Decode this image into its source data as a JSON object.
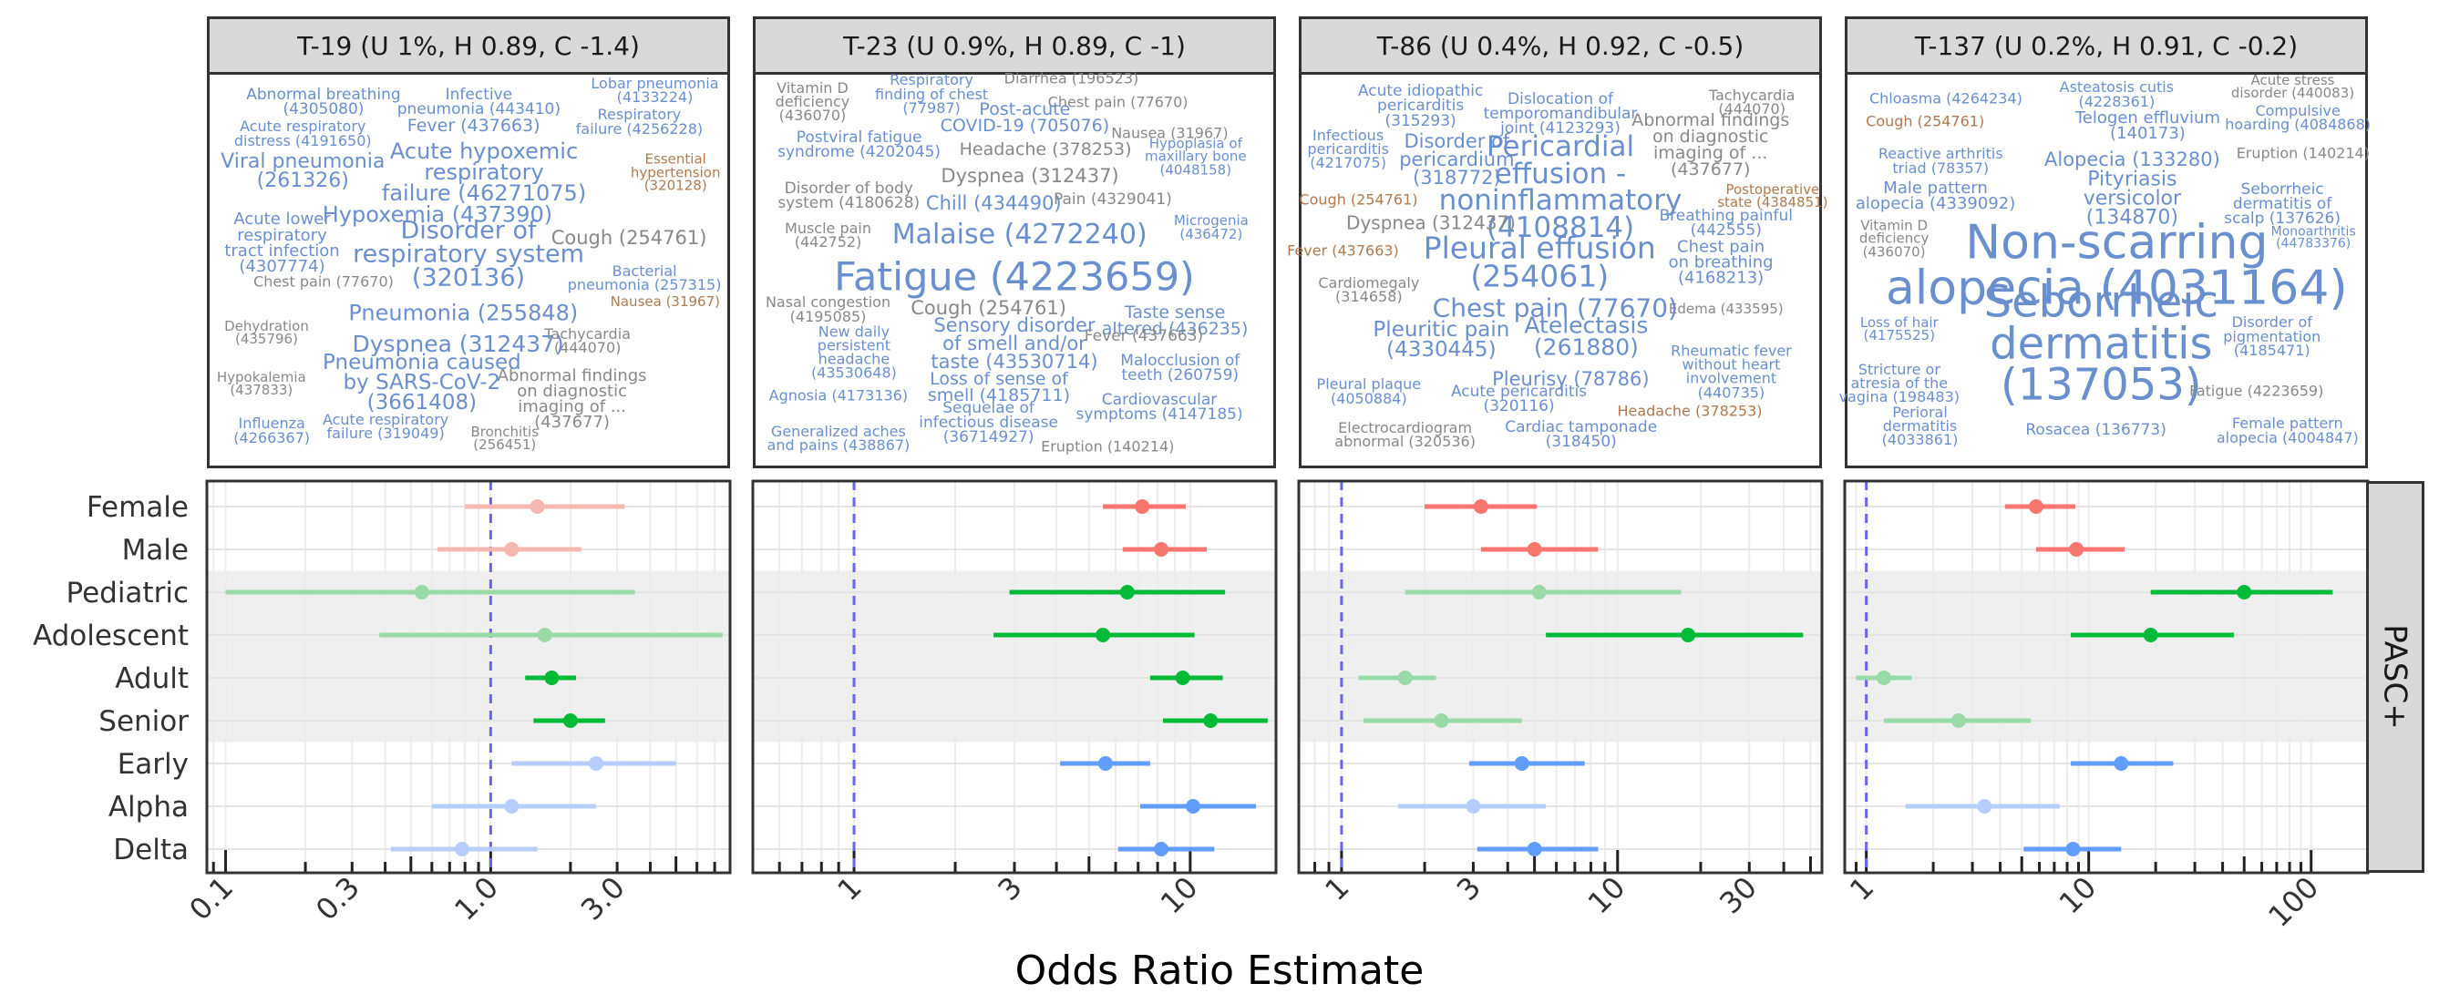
{
  "xaxis_title": "Odds Ratio Estimate",
  "side_strip_label": "PASC+",
  "colors": {
    "sex": "#f8766d",
    "age": "#00ba38",
    "variant": "#619cff",
    "reference_line": "#6666ee",
    "wordcloud_blue": "#6a8fcf",
    "wordcloud_gray": "#888888",
    "wordcloud_brown": "#b07a50"
  },
  "panels": [
    {
      "title": "T-19 (U 1%, H 0.89, C -1.4)",
      "words": [
        {
          "t": "Abnormal breathing\n(4305080)",
          "c": "b"
        },
        {
          "t": "Infective\npneumonia (443410)",
          "c": "b"
        },
        {
          "t": "Lobar pneumonia\n(4133224)",
          "c": "b"
        },
        {
          "t": "Acute respiratory\ndistress (4191650)",
          "c": "b"
        },
        {
          "t": "Fever (437663)",
          "c": "b"
        },
        {
          "t": "Respiratory\nfailure (4256228)",
          "c": "b"
        },
        {
          "t": "Viral pneumonia\n(261326)",
          "c": "b"
        },
        {
          "t": "Acute hypoxemic\nrespiratory\nfailure (46271075)",
          "c": "b"
        },
        {
          "t": "Essential\nhypertension\n(320128)",
          "c": "o"
        },
        {
          "t": "Acute lower\nrespiratory\ntract infection\n(4307774)",
          "c": "b"
        },
        {
          "t": "Hypoxemia (437390)",
          "c": "b"
        },
        {
          "t": "Disorder of\nrespiratory system\n(320136)",
          "c": "b"
        },
        {
          "t": "Cough (254761)",
          "c": "g"
        },
        {
          "t": "Chest pain (77670)",
          "c": "g"
        },
        {
          "t": "Bacterial\npneumonia (257315)",
          "c": "b"
        },
        {
          "t": "Pneumonia (255848)",
          "c": "b"
        },
        {
          "t": "Nausea (31967)",
          "c": "o"
        },
        {
          "t": "Dehydration\n(435796)",
          "c": "g"
        },
        {
          "t": "Dyspnea (312437)",
          "c": "b"
        },
        {
          "t": "Tachycardia\n(444070)",
          "c": "g"
        },
        {
          "t": "Hypokalemia\n(437833)",
          "c": "g"
        },
        {
          "t": "Pneumonia caused\nby SARS-CoV-2\n(3661408)",
          "c": "b"
        },
        {
          "t": "Abnormal findings\non diagnostic\nimaging of ...\n(437677)",
          "c": "g"
        },
        {
          "t": "Influenza\n(4266367)",
          "c": "b"
        },
        {
          "t": "Acute respiratory\nfailure (319049)",
          "c": "b"
        },
        {
          "t": "Bronchitis\n(256451)",
          "c": "g"
        }
      ],
      "xticks": [
        "0.1",
        "0.3",
        "1.0",
        "3.0"
      ]
    },
    {
      "title": "T-23 (U 0.9%, H 0.89, C -1)",
      "words": [
        {
          "t": "Vitamin D\ndeficiency\n(436070)",
          "c": "g"
        },
        {
          "t": "Respiratory\nfinding of chest\n(77987)",
          "c": "b"
        },
        {
          "t": "Diarrhea (196523)",
          "c": "g"
        },
        {
          "t": "Chest pain (77670)",
          "c": "g"
        },
        {
          "t": "Post-acute\nCOVID-19 (705076)",
          "c": "b"
        },
        {
          "t": "Postviral fatigue\nsyndrome (4202045)",
          "c": "b"
        },
        {
          "t": "Nausea (31967)",
          "c": "g"
        },
        {
          "t": "Headache (378253)",
          "c": "g"
        },
        {
          "t": "Hypoplasia of\nmaxillary bone\n(4048158)",
          "c": "b"
        },
        {
          "t": "Disorder of body\nsystem (4180628)",
          "c": "g"
        },
        {
          "t": "Dyspnea (312437)",
          "c": "g"
        },
        {
          "t": "Chill (434490)",
          "c": "b"
        },
        {
          "t": "Pain (4329041)",
          "c": "g"
        },
        {
          "t": "Muscle pain\n(442752)",
          "c": "g"
        },
        {
          "t": "Malaise (4272240)",
          "c": "b"
        },
        {
          "t": "Microgenia\n(436472)",
          "c": "b"
        },
        {
          "t": "Fatigue (4223659)",
          "c": "b"
        },
        {
          "t": "Nasal congestion\n(4195085)",
          "c": "g"
        },
        {
          "t": "Cough (254761)",
          "c": "g"
        },
        {
          "t": "Taste sense\naltered (436235)",
          "c": "b"
        },
        {
          "t": "Sensory disorder\nof smell and/or\ntaste (43530714)",
          "c": "b"
        },
        {
          "t": "New daily\npersistent\nheadache\n(43530648)",
          "c": "b"
        },
        {
          "t": "Fever (437663)",
          "c": "g"
        },
        {
          "t": "Loss of sense of\nsmell (4185711)",
          "c": "b"
        },
        {
          "t": "Malocclusion of\nteeth (260759)",
          "c": "b"
        },
        {
          "t": "Agnosia (4173136)",
          "c": "b"
        },
        {
          "t": "Cardiovascular\nsymptoms (4147185)",
          "c": "b"
        },
        {
          "t": "Sequelae of\ninfectious disease\n(36714927)",
          "c": "b"
        },
        {
          "t": "Generalized aches\nand pains (438867)",
          "c": "b"
        },
        {
          "t": "Eruption (140214)",
          "c": "g"
        }
      ],
      "xticks": [
        "1",
        "3",
        "10"
      ]
    },
    {
      "title": "T-86 (U 0.4%, H 0.92, C -0.5)",
      "words": [
        {
          "t": "Acute idiopathic\npericarditis\n(315293)",
          "c": "b"
        },
        {
          "t": "Dislocation of\ntemporomandibular\njoint (4123293)",
          "c": "b"
        },
        {
          "t": "Tachycardia\n(444070)",
          "c": "g"
        },
        {
          "t": "Infectious\npericarditis\n(4217075)",
          "c": "b"
        },
        {
          "t": "Disorder of\npericardium\n(318772)",
          "c": "b"
        },
        {
          "t": "Abnormal findings\non diagnostic\nimaging of ...\n(437677)",
          "c": "g"
        },
        {
          "t": "Pericardial\neffusion -\nnoninflammatory\n(4108814)",
          "c": "b"
        },
        {
          "t": "Cough (254761)",
          "c": "o"
        },
        {
          "t": "Postoperative\nstate (4384851)",
          "c": "o"
        },
        {
          "t": "Dyspnea (312437)",
          "c": "g"
        },
        {
          "t": "Breathing painful\n(442555)",
          "c": "b"
        },
        {
          "t": "Fever (437663)",
          "c": "o"
        },
        {
          "t": "Pleural effusion\n(254061)",
          "c": "b"
        },
        {
          "t": "Chest pain\non breathing\n(4168213)",
          "c": "b"
        },
        {
          "t": "Cardiomegaly\n(314658)",
          "c": "g"
        },
        {
          "t": "Chest pain (77670)",
          "c": "b"
        },
        {
          "t": "Edema (433595)",
          "c": "g"
        },
        {
          "t": "Pleuritic pain\n(4330445)",
          "c": "b"
        },
        {
          "t": "Atelectasis\n(261880)",
          "c": "b"
        },
        {
          "t": "Rheumatic fever\nwithout heart\ninvolvement\n(440735)",
          "c": "b"
        },
        {
          "t": "Pleurisy (78786)",
          "c": "b"
        },
        {
          "t": "Pleural plaque\n(4050884)",
          "c": "b"
        },
        {
          "t": "Acute pericarditis\n(320116)",
          "c": "b"
        },
        {
          "t": "Headache (378253)",
          "c": "o"
        },
        {
          "t": "Electrocardiogram\nabnormal (320536)",
          "c": "g"
        },
        {
          "t": "Cardiac tamponade\n(318450)",
          "c": "b"
        }
      ],
      "xticks": [
        "1",
        "3",
        "10",
        "30"
      ]
    },
    {
      "title": "T-137 (U 0.2%, H 0.91, C -0.2)",
      "words": [
        {
          "t": "Chloasma (4264234)",
          "c": "b"
        },
        {
          "t": "Asteatosis cutis\n(4228361)",
          "c": "b"
        },
        {
          "t": "Acute stress\ndisorder (440083)",
          "c": "g"
        },
        {
          "t": "Cough (254761)",
          "c": "o"
        },
        {
          "t": "Telogen effluvium\n(140173)",
          "c": "b"
        },
        {
          "t": "Compulsive\nhoarding (4084868)",
          "c": "b"
        },
        {
          "t": "Reactive arthritis\ntriad (78357)",
          "c": "b"
        },
        {
          "t": "Alopecia (133280)",
          "c": "b"
        },
        {
          "t": "Eruption (140214)",
          "c": "g"
        },
        {
          "t": "Male pattern\nalopecia (4339092)",
          "c": "b"
        },
        {
          "t": "Pityriasis\nversicolor\n(134870)",
          "c": "b"
        },
        {
          "t": "Seborrheic\ndermatitis of\nscalp (137626)",
          "c": "b"
        },
        {
          "t": "Vitamin D\ndeficiency\n(436070)",
          "c": "g"
        },
        {
          "t": "Non-scarring\nalopecia (4031164)",
          "c": "b"
        },
        {
          "t": "Monoarthritis\n(44783376)",
          "c": "b"
        },
        {
          "t": "Seborrheic\ndermatitis\n(137053)",
          "c": "b"
        },
        {
          "t": "Loss of hair\n(4175525)",
          "c": "b"
        },
        {
          "t": "Disorder of\npigmentation\n(4185471)",
          "c": "b"
        },
        {
          "t": "Stricture or\natresia of the\nvagina (198483)",
          "c": "b"
        },
        {
          "t": "Fatigue (4223659)",
          "c": "g"
        },
        {
          "t": "Perioral\ndermatitis\n(4033861)",
          "c": "b"
        },
        {
          "t": "Rosacea (136773)",
          "c": "b"
        },
        {
          "t": "Female pattern\nalopecia (4004847)",
          "c": "b"
        }
      ],
      "xticks": [
        "1",
        "10",
        "100"
      ]
    }
  ],
  "chart_data": {
    "type": "forest",
    "xlabel": "Odds Ratio Estimate",
    "x_scale": "log",
    "reference_line": 1,
    "facet_label": "PASC+",
    "categories": [
      "Female",
      "Male",
      "Pediatric",
      "Adolescent",
      "Adult",
      "Senior",
      "Early",
      "Alpha",
      "Delta"
    ],
    "groups": [
      "sex",
      "sex",
      "age",
      "age",
      "age",
      "age",
      "variant",
      "variant",
      "variant"
    ],
    "panels": [
      {
        "title": "T-19 (U 1%, H 0.89, C -1.4)",
        "xlim": [
          0.085,
          8
        ],
        "xticks": [
          0.1,
          0.3,
          1.0,
          3.0
        ],
        "estimates": [
          1.5,
          1.2,
          0.55,
          1.6,
          1.7,
          2.0,
          2.5,
          1.2,
          0.78
        ],
        "lower": [
          0.8,
          0.63,
          0.1,
          0.38,
          1.35,
          1.45,
          1.2,
          0.6,
          0.42
        ],
        "upper": [
          3.2,
          2.2,
          3.5,
          7.5,
          2.1,
          2.7,
          5.0,
          2.5,
          1.5
        ],
        "significant": [
          false,
          false,
          false,
          false,
          true,
          true,
          false,
          false,
          false
        ]
      },
      {
        "title": "T-23 (U 0.9%, H 0.89, C -1)",
        "xlim": [
          0.5,
          18
        ],
        "xticks": [
          1,
          3,
          10
        ],
        "estimates": [
          7.2,
          8.2,
          6.5,
          5.5,
          9.5,
          11.5,
          5.6,
          10.2,
          8.2
        ],
        "lower": [
          5.5,
          6.3,
          2.9,
          2.6,
          7.6,
          8.3,
          4.1,
          7.1,
          6.1
        ],
        "upper": [
          9.7,
          11.2,
          12.7,
          10.3,
          12.5,
          17.0,
          7.6,
          15.7,
          11.8
        ],
        "significant": [
          true,
          true,
          true,
          true,
          true,
          true,
          true,
          true,
          true
        ]
      },
      {
        "title": "T-86 (U 0.4%, H 0.92, C -0.5)",
        "xlim": [
          0.7,
          55
        ],
        "xticks": [
          1,
          3,
          10,
          30
        ],
        "estimates": [
          3.2,
          5.0,
          5.2,
          18.0,
          1.7,
          2.3,
          4.5,
          3.0,
          5.0
        ],
        "lower": [
          2.0,
          3.2,
          1.7,
          5.5,
          1.15,
          1.2,
          2.9,
          1.6,
          3.1
        ],
        "upper": [
          5.1,
          8.5,
          17.0,
          47.0,
          2.2,
          4.5,
          7.6,
          5.5,
          8.5
        ],
        "significant": [
          true,
          true,
          false,
          true,
          false,
          false,
          true,
          false,
          true
        ]
      },
      {
        "title": "T-137 (U 0.2%, H 0.91, C -0.2)",
        "xlim": [
          0.8,
          180
        ],
        "xticks": [
          1,
          10,
          100
        ],
        "estimates": [
          5.8,
          8.8,
          50.0,
          19.0,
          1.2,
          2.6,
          14.0,
          3.4,
          8.5
        ],
        "lower": [
          4.2,
          5.8,
          19.0,
          8.3,
          0.9,
          1.2,
          8.3,
          1.5,
          5.1
        ],
        "upper": [
          8.7,
          14.5,
          125.0,
          45.0,
          1.6,
          5.5,
          24.0,
          7.4,
          14.0
        ],
        "significant": [
          true,
          true,
          true,
          true,
          false,
          false,
          true,
          false,
          true
        ]
      }
    ]
  }
}
